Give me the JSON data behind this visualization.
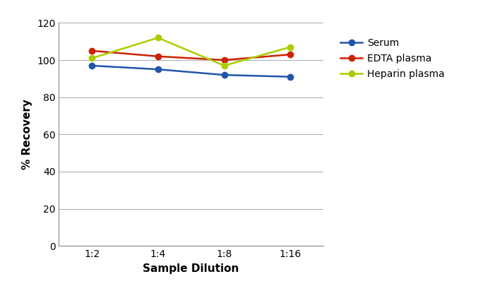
{
  "x_labels": [
    "1:2",
    "1:4",
    "1:8",
    "1:16"
  ],
  "x_values": [
    1,
    2,
    3,
    4
  ],
  "serum": [
    97,
    95,
    92,
    91
  ],
  "edta_plasma": [
    105,
    102,
    100,
    103
  ],
  "heparin_plasma": [
    101,
    112,
    97,
    107
  ],
  "serum_color": "#2255aa",
  "edta_color": "#cc2200",
  "heparin_color": "#aacc00",
  "ylabel": "% Recovery",
  "xlabel": "Sample Dilution",
  "ylim": [
    0,
    120
  ],
  "yticks": [
    0,
    20,
    40,
    60,
    80,
    100,
    120
  ],
  "legend_labels": [
    "Serum",
    "EDTA plasma",
    "Heparin plasma"
  ],
  "marker": "o",
  "markersize": 6,
  "linewidth": 1.8,
  "grid_color": "#aaaaaa",
  "background_color": "#ffffff"
}
